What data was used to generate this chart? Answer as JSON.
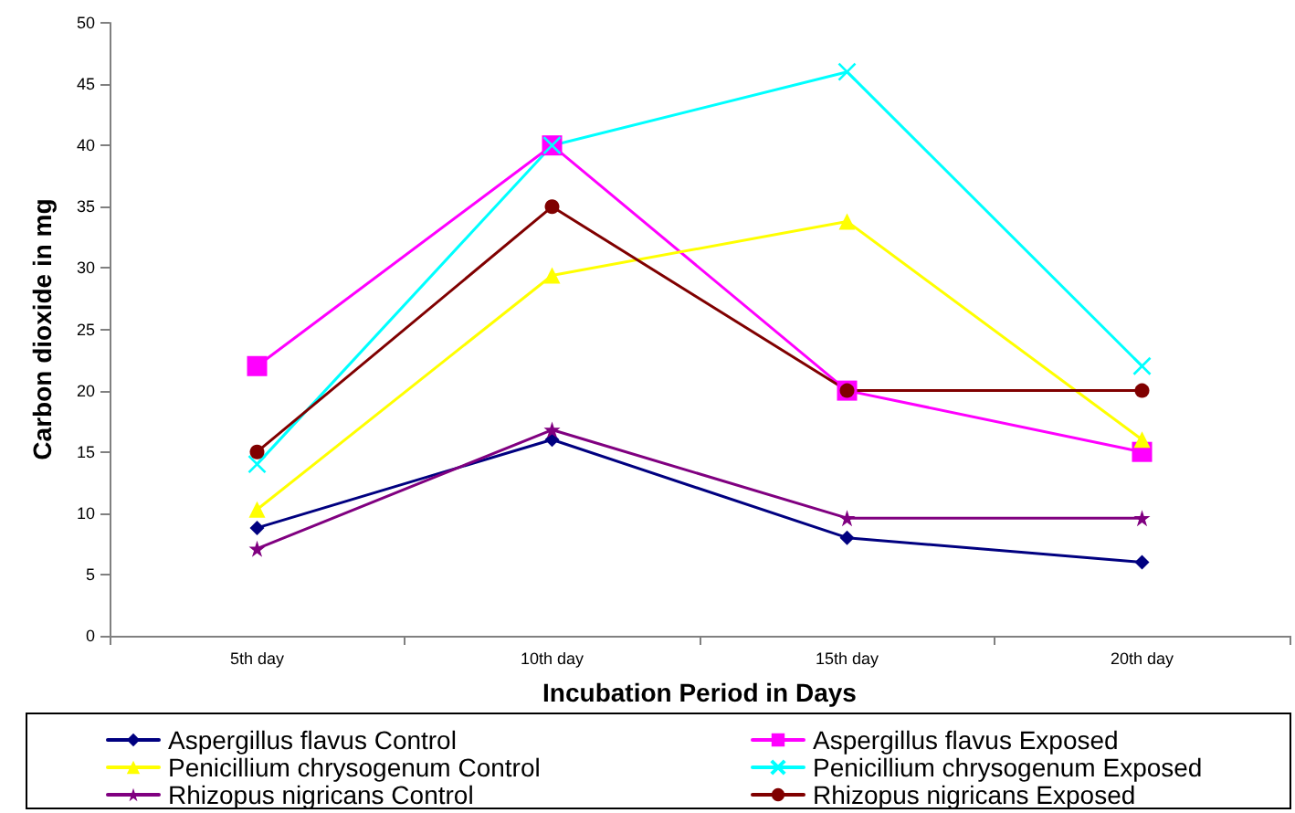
{
  "chart_data": {
    "type": "line",
    "xlabel": "Incubation Period in Days",
    "ylabel": "Carbon dioxide in mg",
    "categories": [
      "5th day",
      "10th day",
      "15th day",
      "20th day"
    ],
    "ylim": [
      0,
      50
    ],
    "yticks": [
      0,
      5,
      10,
      15,
      20,
      25,
      30,
      35,
      40,
      45,
      50
    ],
    "grid": false,
    "legend": "bottom",
    "line_style": "solid",
    "series": [
      {
        "name": "Aspergillus flavus Control",
        "color": "#000080",
        "marker": "diamond",
        "values": [
          8.8,
          16,
          8,
          6
        ]
      },
      {
        "name": "Aspergillus flavus Exposed",
        "color": "#ff00ff",
        "marker": "square",
        "values": [
          22,
          40,
          20,
          15
        ]
      },
      {
        "name": "Penicillium chrysogenum Control",
        "color": "#ffff00",
        "marker": "triangle",
        "values": [
          10.3,
          29.4,
          33.8,
          16
        ]
      },
      {
        "name": "Penicillium chrysogenum Exposed",
        "color": "#00ffff",
        "marker": "cross",
        "values": [
          14,
          40,
          46,
          22
        ]
      },
      {
        "name": "Rhizopus nigricans Control",
        "color": "#800080",
        "marker": "star",
        "values": [
          7.1,
          16.8,
          9.6,
          9.6
        ]
      },
      {
        "name": "Rhizopus nigricans Exposed",
        "color": "#800000",
        "marker": "circle",
        "values": [
          15,
          35,
          20,
          20
        ]
      }
    ]
  }
}
